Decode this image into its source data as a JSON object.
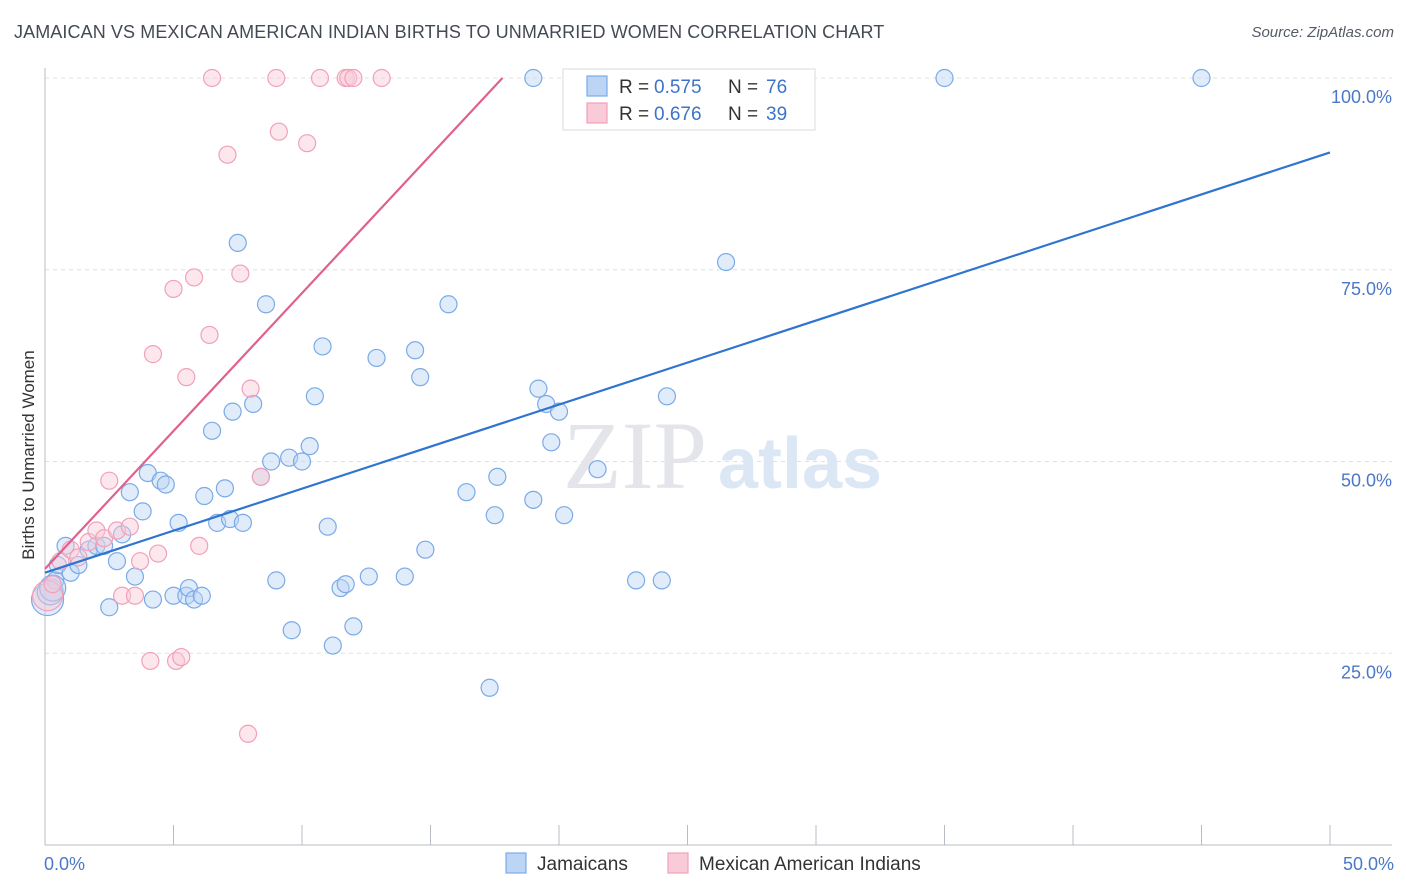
{
  "header": {
    "title": "JAMAICAN VS MEXICAN AMERICAN INDIAN BIRTHS TO UNMARRIED WOMEN CORRELATION CHART",
    "source": "Source: ZipAtlas.com"
  },
  "watermark": {
    "zip": "ZIP",
    "atlas": "atlas"
  },
  "chart_data": {
    "type": "scatter",
    "ylabel": "Births to Unmarried Women",
    "xlim": [
      0,
      50
    ],
    "ylim": [
      0,
      100
    ],
    "x_tick_labels": [
      "0.0%",
      "50.0%"
    ],
    "y_ticks": [
      25,
      50,
      75,
      100
    ],
    "y_tick_labels": [
      "25.0%",
      "50.0%",
      "75.0%",
      "100.0%"
    ],
    "grid": true,
    "legend": {
      "placement": "top-center",
      "entries": [
        {
          "r_label": "R = ",
          "r_value": "0.575",
          "n_label": "N = ",
          "n_value": "76"
        },
        {
          "r_label": "R = ",
          "r_value": "0.676",
          "n_label": "N = ",
          "n_value": "39"
        }
      ]
    },
    "series": [
      {
        "name": "Jamaicans",
        "color": "#7aaae8",
        "line_color": "#2f74d0",
        "trend": [
          [
            0,
            35.5
          ],
          [
            50,
            90.3
          ]
        ],
        "points": [
          [
            0.1,
            32
          ],
          [
            0.2,
            33
          ],
          [
            0.4,
            34.5
          ],
          [
            0.5,
            36.5
          ],
          [
            0.8,
            39
          ],
          [
            1,
            35.5
          ],
          [
            1.3,
            36.5
          ],
          [
            1.7,
            38.5
          ],
          [
            2,
            39
          ],
          [
            2.3,
            39
          ],
          [
            2.5,
            31
          ],
          [
            2.8,
            37
          ],
          [
            3,
            40.5
          ],
          [
            3.3,
            46
          ],
          [
            3.5,
            35
          ],
          [
            3.8,
            43.5
          ],
          [
            4,
            48.5
          ],
          [
            4.2,
            32
          ],
          [
            4.5,
            47.5
          ],
          [
            4.7,
            47
          ],
          [
            5,
            32.5
          ],
          [
            5.2,
            42
          ],
          [
            5.5,
            32.5
          ],
          [
            5.6,
            33.5
          ],
          [
            5.8,
            32
          ],
          [
            6.1,
            32.5
          ],
          [
            6.2,
            45.5
          ],
          [
            6.5,
            54
          ],
          [
            6.7,
            42
          ],
          [
            7,
            46.5
          ],
          [
            7.2,
            42.5
          ],
          [
            7.3,
            56.5
          ],
          [
            7.5,
            78.5
          ],
          [
            7.7,
            42
          ],
          [
            8.1,
            57.5
          ],
          [
            8.4,
            48
          ],
          [
            8.6,
            70.5
          ],
          [
            8.8,
            50
          ],
          [
            9,
            34.5
          ],
          [
            9.5,
            50.5
          ],
          [
            9.6,
            28
          ],
          [
            10,
            50
          ],
          [
            10.3,
            52
          ],
          [
            10.5,
            58.5
          ],
          [
            10.8,
            65
          ],
          [
            11,
            41.5
          ],
          [
            11.2,
            26
          ],
          [
            11.5,
            33.5
          ],
          [
            11.7,
            34
          ],
          [
            12,
            28.5
          ],
          [
            12.6,
            35
          ],
          [
            12.9,
            63.5
          ],
          [
            14,
            35
          ],
          [
            14.4,
            64.5
          ],
          [
            14.6,
            61
          ],
          [
            14.8,
            38.5
          ],
          [
            15.7,
            70.5
          ],
          [
            16.4,
            46
          ],
          [
            17.3,
            20.5
          ],
          [
            17.5,
            43
          ],
          [
            17.6,
            48
          ],
          [
            19,
            45
          ],
          [
            19.2,
            59.5
          ],
          [
            19.5,
            57.5
          ],
          [
            19.7,
            52.5
          ],
          [
            20,
            56.5
          ],
          [
            20.2,
            43
          ],
          [
            21.5,
            49
          ],
          [
            23,
            34.5
          ],
          [
            24,
            34.5
          ],
          [
            24.2,
            58.5
          ],
          [
            26.5,
            76
          ],
          [
            19,
            100
          ],
          [
            35,
            100
          ],
          [
            45,
            100
          ],
          [
            0.3,
            33.5
          ]
        ]
      },
      {
        "name": "Mexican American Indians",
        "color": "#f2a0ba",
        "line_color": "#e0618e",
        "trend": [
          [
            0,
            36
          ],
          [
            17.8,
            100
          ]
        ],
        "points": [
          [
            0.1,
            32.5
          ],
          [
            0.3,
            34
          ],
          [
            0.6,
            37
          ],
          [
            1,
            38.5
          ],
          [
            1.3,
            37.5
          ],
          [
            1.7,
            39.5
          ],
          [
            2,
            41
          ],
          [
            2.3,
            40
          ],
          [
            2.5,
            47.5
          ],
          [
            2.8,
            41
          ],
          [
            3,
            32.5
          ],
          [
            3.3,
            41.5
          ],
          [
            3.5,
            32.5
          ],
          [
            3.7,
            37
          ],
          [
            4.1,
            24
          ],
          [
            4.2,
            64
          ],
          [
            4.4,
            38
          ],
          [
            5,
            72.5
          ],
          [
            5.1,
            24
          ],
          [
            5.3,
            24.5
          ],
          [
            5.5,
            61
          ],
          [
            5.8,
            74
          ],
          [
            6,
            39
          ],
          [
            6.4,
            66.5
          ],
          [
            6.5,
            100
          ],
          [
            7.1,
            90
          ],
          [
            7.6,
            74.5
          ],
          [
            7.9,
            14.5
          ],
          [
            8,
            59.5
          ],
          [
            8.4,
            48
          ],
          [
            9,
            100
          ],
          [
            9.1,
            93
          ],
          [
            10.2,
            91.5
          ],
          [
            10.7,
            100
          ],
          [
            11.7,
            100
          ],
          [
            11.8,
            100
          ],
          [
            12,
            100
          ],
          [
            13.1,
            100
          ],
          [
            29.5,
            100
          ]
        ]
      }
    ]
  }
}
